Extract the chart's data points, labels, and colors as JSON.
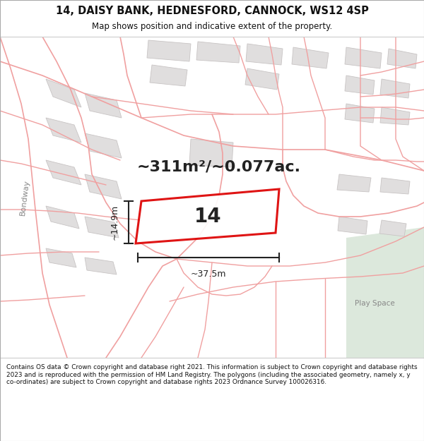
{
  "title_line1": "14, DAISY BANK, HEDNESFORD, CANNOCK, WS12 4SP",
  "title_line2": "Map shows position and indicative extent of the property.",
  "area_text": "~311m²/~0.077ac.",
  "plot_number": "14",
  "dim_width": "~37.5m",
  "dim_height": "~14.9m",
  "footer_text": "Contains OS data © Crown copyright and database right 2021. This information is subject to Crown copyright and database rights 2023 and is reproduced with the permission of HM Land Registry. The polygons (including the associated geometry, namely x, y co-ordinates) are subject to Crown copyright and database rights 2023 Ordnance Survey 100026316.",
  "bg_color": "#ffffff",
  "map_bg": "#ffffff",
  "road_color": "#f0a0a0",
  "building_color": "#e0dede",
  "building_edge": "#c8c4c4",
  "plot_edge_color": "#dd0000",
  "footer_bg": "#ffffff",
  "header_bg": "#ffffff",
  "bondway_color": "#888888",
  "playspace_color": "#888888",
  "green_color": "#dce8dc",
  "dim_line_color": "#222222"
}
